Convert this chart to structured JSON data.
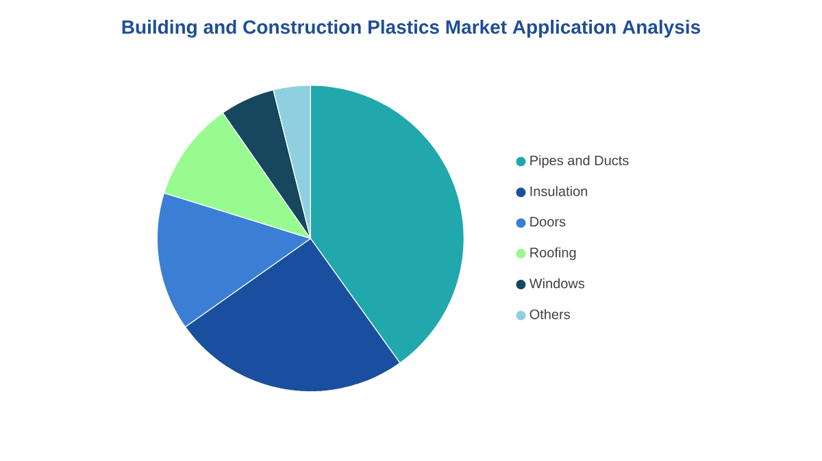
{
  "chart_data": {
    "type": "pie",
    "title": "Building and Construction Plastics Market Application Analysis",
    "categories": [
      "Pipes and Ducts",
      "Insulation",
      "Doors",
      "Roofing",
      "Windows",
      "Others"
    ],
    "values": [
      40.1,
      25.1,
      14.6,
      10.5,
      5.8,
      3.9
    ],
    "colors": [
      "#20a8ac",
      "#1a4f9f",
      "#3a7fd5",
      "#98fb8f",
      "#17465f",
      "#8fd0e0"
    ],
    "legend": "right"
  }
}
